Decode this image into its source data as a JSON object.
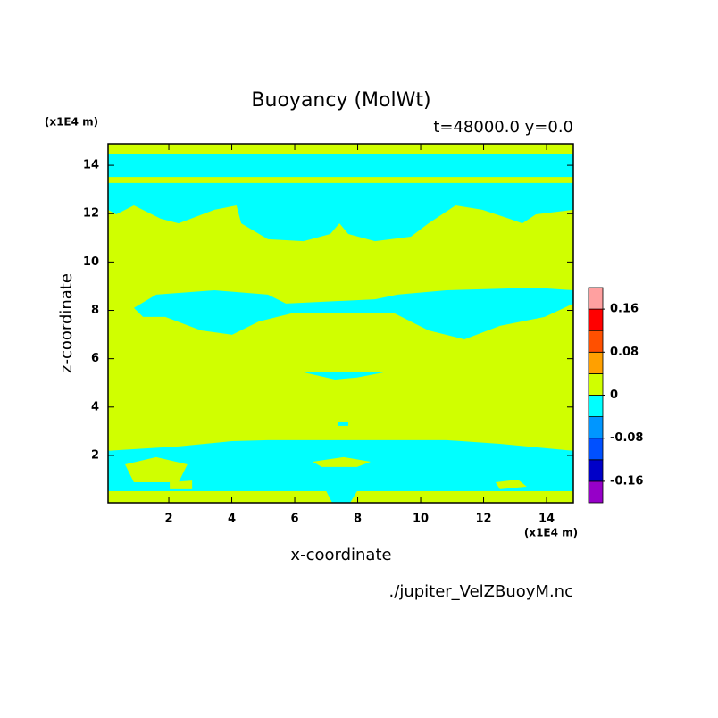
{
  "chart_data": {
    "type": "contour",
    "title": "Buoyancy (MolWt)",
    "subtitle": "t=48000.0 y=0.0",
    "x_label": "x-coordinate",
    "y_label": "z-coordinate",
    "x_unit": "(x1E4 m)",
    "y_unit": "(x1E4 m)",
    "source": "./jupiter_VelZBuoyM.nc",
    "xlim": [
      0.07,
      14.85
    ],
    "ylim": [
      0.04,
      14.89
    ],
    "xticks": [
      2,
      4,
      6,
      8,
      10,
      12,
      14
    ],
    "yticks": [
      2,
      4,
      6,
      8,
      10,
      12,
      14
    ],
    "background": "#d0ff00",
    "regions": [
      {
        "color": "#00ffff",
        "x": [
          0.07,
          14.85,
          14.85,
          0.07
        ],
        "y": [
          14.48,
          14.48,
          13.52,
          13.52
        ]
      },
      {
        "color": "#00ffff",
        "x": [
          0.07,
          14.85,
          14.85,
          13.66,
          13.23,
          12.81,
          11.96,
          11.11,
          10.25,
          9.69,
          8.55,
          7.7,
          7.42,
          7.13,
          6.28,
          5.15,
          4.3,
          4.15,
          3.45,
          2.31,
          1.74,
          0.89,
          0.33,
          0.07
        ],
        "y": [
          13.27,
          13.27,
          12.16,
          11.97,
          11.6,
          11.79,
          12.16,
          12.34,
          11.6,
          11.05,
          10.86,
          11.16,
          11.6,
          11.16,
          10.86,
          10.94,
          11.6,
          12.34,
          12.16,
          11.6,
          11.79,
          12.34,
          11.97,
          12.16
        ]
      },
      {
        "color": "#00ffff",
        "x": [
          0.89,
          1.6,
          3.45,
          5.15,
          5.72,
          8.55,
          9.26,
          10.82,
          13.66,
          14.85,
          14.85,
          13.94,
          12.52,
          11.39,
          10.25,
          9.12,
          6.0,
          4.86,
          4.01,
          3.02,
          1.89,
          1.18
        ],
        "y": [
          8.1,
          8.65,
          8.83,
          8.65,
          8.28,
          8.46,
          8.65,
          8.83,
          8.94,
          8.83,
          8.28,
          7.73,
          7.36,
          6.8,
          7.17,
          7.91,
          7.91,
          7.54,
          6.99,
          7.17,
          7.73,
          7.73
        ]
      },
      {
        "color": "#00ffff",
        "x": [
          6.28,
          8.84,
          7.98,
          7.28
        ],
        "y": [
          5.44,
          5.44,
          5.22,
          5.14
        ]
      },
      {
        "color": "#00ffff",
        "x": [
          7.36,
          7.7,
          7.7,
          7.36
        ],
        "y": [
          3.37,
          3.37,
          3.22,
          3.22
        ]
      },
      {
        "color": "#00ffff",
        "x": [
          0.07,
          2.31,
          4.01,
          5.15,
          10.82,
          12.52,
          14.85,
          14.85,
          0.07
        ],
        "y": [
          2.19,
          2.37,
          2.59,
          2.63,
          2.63,
          2.48,
          2.19,
          0.04,
          0.04
        ]
      },
      {
        "color": "#d0ff00",
        "x": [
          0.61,
          1.6,
          2.59,
          2.31,
          0.89
        ],
        "y": [
          1.63,
          1.93,
          1.63,
          0.89,
          0.89
        ]
      },
      {
        "color": "#d0ff00",
        "x": [
          6.57,
          7.56,
          8.41,
          7.98,
          6.86
        ],
        "y": [
          1.74,
          1.93,
          1.74,
          1.52,
          1.52
        ]
      },
      {
        "color": "#d0ff00",
        "x": [
          0.07,
          7.0,
          7.19,
          7.76,
          7.98,
          14.85,
          14.85,
          0.07
        ],
        "y": [
          0.52,
          0.52,
          0.04,
          0.04,
          0.52,
          0.52,
          0.04,
          0.04
        ]
      },
      {
        "color": "#d0ff00",
        "x": [
          12.38,
          13.09,
          13.37,
          12.52
        ],
        "y": [
          0.89,
          1.0,
          0.71,
          0.6
        ]
      },
      {
        "color": "#d0ff00",
        "x": [
          2.03,
          2.74,
          2.74,
          2.03
        ],
        "y": [
          0.89,
          0.96,
          0.6,
          0.6
        ]
      },
      {
        "color": "#d0ff00",
        "x": [
          7.42,
          7.7,
          7.64,
          7.42,
          7.22,
          7.16
        ],
        "y": [
          11.16,
          10.68,
          10.05,
          9.9,
          10.12,
          10.68
        ]
      }
    ],
    "colorbar": {
      "lim": [
        -0.2,
        0.2
      ],
      "colors": [
        "#9600c8",
        "#0000c8",
        "#0050ff",
        "#0096ff",
        "#00ffff",
        "#d0ff00",
        "#ffa000",
        "#ff5000",
        "#ff0000",
        "#ffa0a0"
      ],
      "ticks": [
        -0.16,
        -0.08,
        0,
        0.08,
        0.16
      ]
    }
  }
}
